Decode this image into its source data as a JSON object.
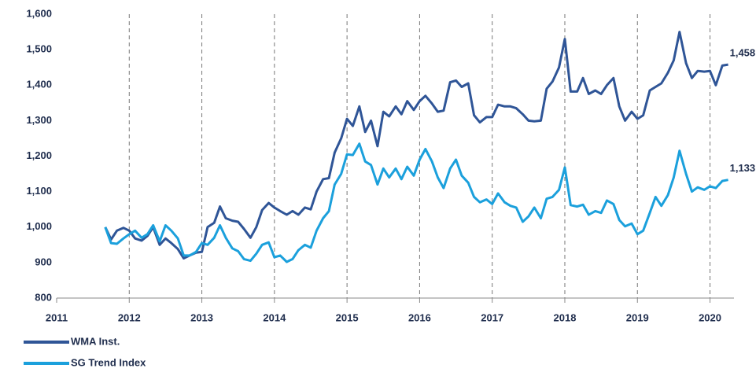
{
  "chart_data": {
    "type": "line",
    "x": [
      2011.67,
      2011.75,
      2011.83,
      2011.92,
      2012.0,
      2012.08,
      2012.17,
      2012.25,
      2012.33,
      2012.42,
      2012.5,
      2012.58,
      2012.67,
      2012.75,
      2012.83,
      2012.92,
      2013.0,
      2013.08,
      2013.17,
      2013.25,
      2013.33,
      2013.42,
      2013.5,
      2013.58,
      2013.67,
      2013.75,
      2013.83,
      2013.92,
      2014.0,
      2014.08,
      2014.17,
      2014.25,
      2014.33,
      2014.42,
      2014.5,
      2014.58,
      2014.67,
      2014.75,
      2014.83,
      2014.92,
      2015.0,
      2015.08,
      2015.17,
      2015.25,
      2015.33,
      2015.42,
      2015.5,
      2015.58,
      2015.67,
      2015.75,
      2015.83,
      2015.92,
      2016.0,
      2016.08,
      2016.17,
      2016.25,
      2016.33,
      2016.42,
      2016.5,
      2016.58,
      2016.67,
      2016.75,
      2016.83,
      2016.92,
      2017.0,
      2017.08,
      2017.17,
      2017.25,
      2017.33,
      2017.42,
      2017.5,
      2017.58,
      2017.67,
      2017.75,
      2017.83,
      2017.92,
      2018.0,
      2018.08,
      2018.17,
      2018.25,
      2018.33,
      2018.42,
      2018.5,
      2018.58,
      2018.67,
      2018.75,
      2018.83,
      2018.92,
      2019.0,
      2019.08,
      2019.17,
      2019.25,
      2019.33,
      2019.42,
      2019.5,
      2019.58,
      2019.67,
      2019.75,
      2019.83,
      2019.92,
      2020.0,
      2020.08,
      2020.17,
      2020.25
    ],
    "series": [
      {
        "name": "WMA Inst.",
        "color": "#2f5597",
        "end_label": "1,458",
        "values": [
          1000,
          965,
          990,
          998,
          990,
          968,
          962,
          975,
          1000,
          950,
          968,
          955,
          938,
          912,
          920,
          928,
          930,
          1000,
          1012,
          1058,
          1025,
          1018,
          1015,
          995,
          970,
          1000,
          1048,
          1068,
          1055,
          1045,
          1035,
          1045,
          1035,
          1055,
          1050,
          1100,
          1135,
          1138,
          1210,
          1250,
          1305,
          1285,
          1340,
          1268,
          1300,
          1228,
          1325,
          1312,
          1340,
          1318,
          1355,
          1330,
          1355,
          1370,
          1348,
          1325,
          1328,
          1408,
          1413,
          1395,
          1405,
          1315,
          1295,
          1310,
          1310,
          1345,
          1340,
          1340,
          1335,
          1318,
          1300,
          1298,
          1300,
          1390,
          1410,
          1450,
          1530,
          1382,
          1382,
          1420,
          1375,
          1385,
          1375,
          1400,
          1420,
          1340,
          1300,
          1325,
          1305,
          1315,
          1385,
          1395,
          1405,
          1435,
          1470,
          1550,
          1462,
          1420,
          1440,
          1438,
          1440,
          1400,
          1455,
          1458
        ]
      },
      {
        "name": "SG Trend Index",
        "color": "#1ba0dc",
        "end_label": "1,133",
        "values": [
          1000,
          955,
          953,
          968,
          980,
          990,
          970,
          980,
          1005,
          960,
          1005,
          990,
          968,
          920,
          920,
          930,
          955,
          950,
          970,
          1005,
          970,
          940,
          932,
          910,
          905,
          925,
          950,
          957,
          915,
          920,
          902,
          910,
          935,
          950,
          942,
          990,
          1025,
          1045,
          1120,
          1150,
          1205,
          1203,
          1235,
          1185,
          1175,
          1120,
          1165,
          1140,
          1165,
          1135,
          1170,
          1145,
          1190,
          1220,
          1185,
          1140,
          1110,
          1165,
          1190,
          1145,
          1125,
          1085,
          1070,
          1078,
          1065,
          1095,
          1070,
          1060,
          1055,
          1015,
          1030,
          1055,
          1025,
          1080,
          1085,
          1105,
          1168,
          1062,
          1058,
          1063,
          1035,
          1045,
          1040,
          1075,
          1065,
          1020,
          1002,
          1010,
          980,
          990,
          1040,
          1085,
          1060,
          1090,
          1140,
          1215,
          1150,
          1100,
          1112,
          1105,
          1115,
          1110,
          1130,
          1133
        ]
      }
    ],
    "xlim": [
      2011,
      2020.33
    ],
    "xticks": [
      2011,
      2012,
      2013,
      2014,
      2015,
      2016,
      2017,
      2018,
      2019,
      2020
    ],
    "ylim": [
      800,
      1600
    ],
    "yticks": [
      800,
      900,
      {
        "value": 1000,
        "label": "1,000"
      },
      {
        "value": 1100,
        "label": "1,100"
      },
      {
        "value": 1200,
        "label": "1,200"
      },
      {
        "value": 1300,
        "label": "1,300"
      },
      {
        "value": 1400,
        "label": "1,400"
      },
      {
        "value": 1500,
        "label": "1,500"
      },
      {
        "value": 1600,
        "label": "1,600"
      }
    ],
    "grid": "x-dashed",
    "legend": "bottom-left"
  }
}
